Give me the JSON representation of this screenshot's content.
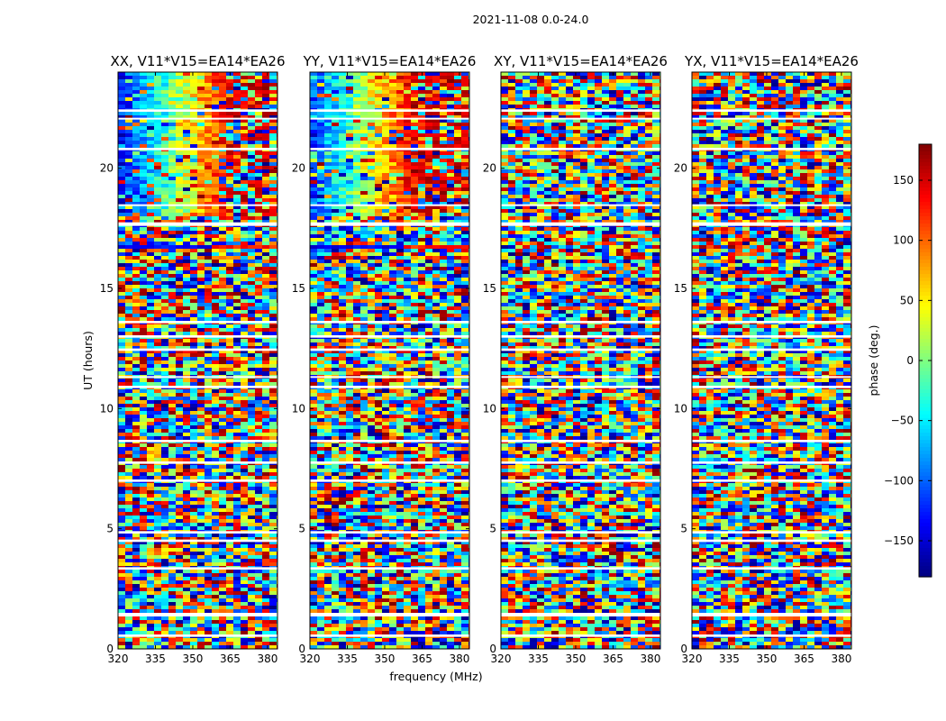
{
  "figure": {
    "suptitle": "2021-11-08 0.0-24.0"
  },
  "chart_data": {
    "type": "heatmap",
    "xlabel": "frequency (MHz)",
    "ylabel": "UT (hours)",
    "xlim": [
      320,
      384
    ],
    "ylim": [
      0,
      24
    ],
    "xticks": [
      320,
      335,
      350,
      365,
      380
    ],
    "yticks": [
      0,
      5,
      10,
      15,
      20
    ],
    "panels": [
      {
        "title": "XX, V11*V15=EA14*EA26",
        "coherent": true
      },
      {
        "title": "YY, V11*V15=EA14*EA26",
        "coherent": true
      },
      {
        "title": "XY, V11*V15=EA14*EA26",
        "coherent": false
      },
      {
        "title": "YX, V11*V15=EA14*EA26",
        "coherent": false
      }
    ],
    "colorbar": {
      "label": "phase (deg.)",
      "range": [
        -180,
        180
      ],
      "ticks": [
        -150,
        -100,
        -50,
        0,
        50,
        100,
        150
      ],
      "colormap": "jet"
    },
    "flagged_bands_hours": [
      [
        0.5,
        0.6
      ],
      [
        1.35,
        1.5
      ],
      [
        3.3,
        3.4
      ],
      [
        4.45,
        4.55
      ],
      [
        4.8,
        4.9
      ],
      [
        6.95,
        7.05
      ],
      [
        7.7,
        7.8
      ],
      [
        8.6,
        8.7
      ],
      [
        10.85,
        10.95
      ],
      [
        11.3,
        11.35
      ],
      [
        12.4,
        12.5
      ],
      [
        12.95,
        13.05
      ],
      [
        13.55,
        13.65
      ],
      [
        17.6,
        17.75
      ],
      [
        18.45,
        18.5
      ],
      [
        20.75,
        20.85
      ],
      [
        22.05,
        22.1
      ],
      [
        22.35,
        22.45
      ]
    ]
  }
}
